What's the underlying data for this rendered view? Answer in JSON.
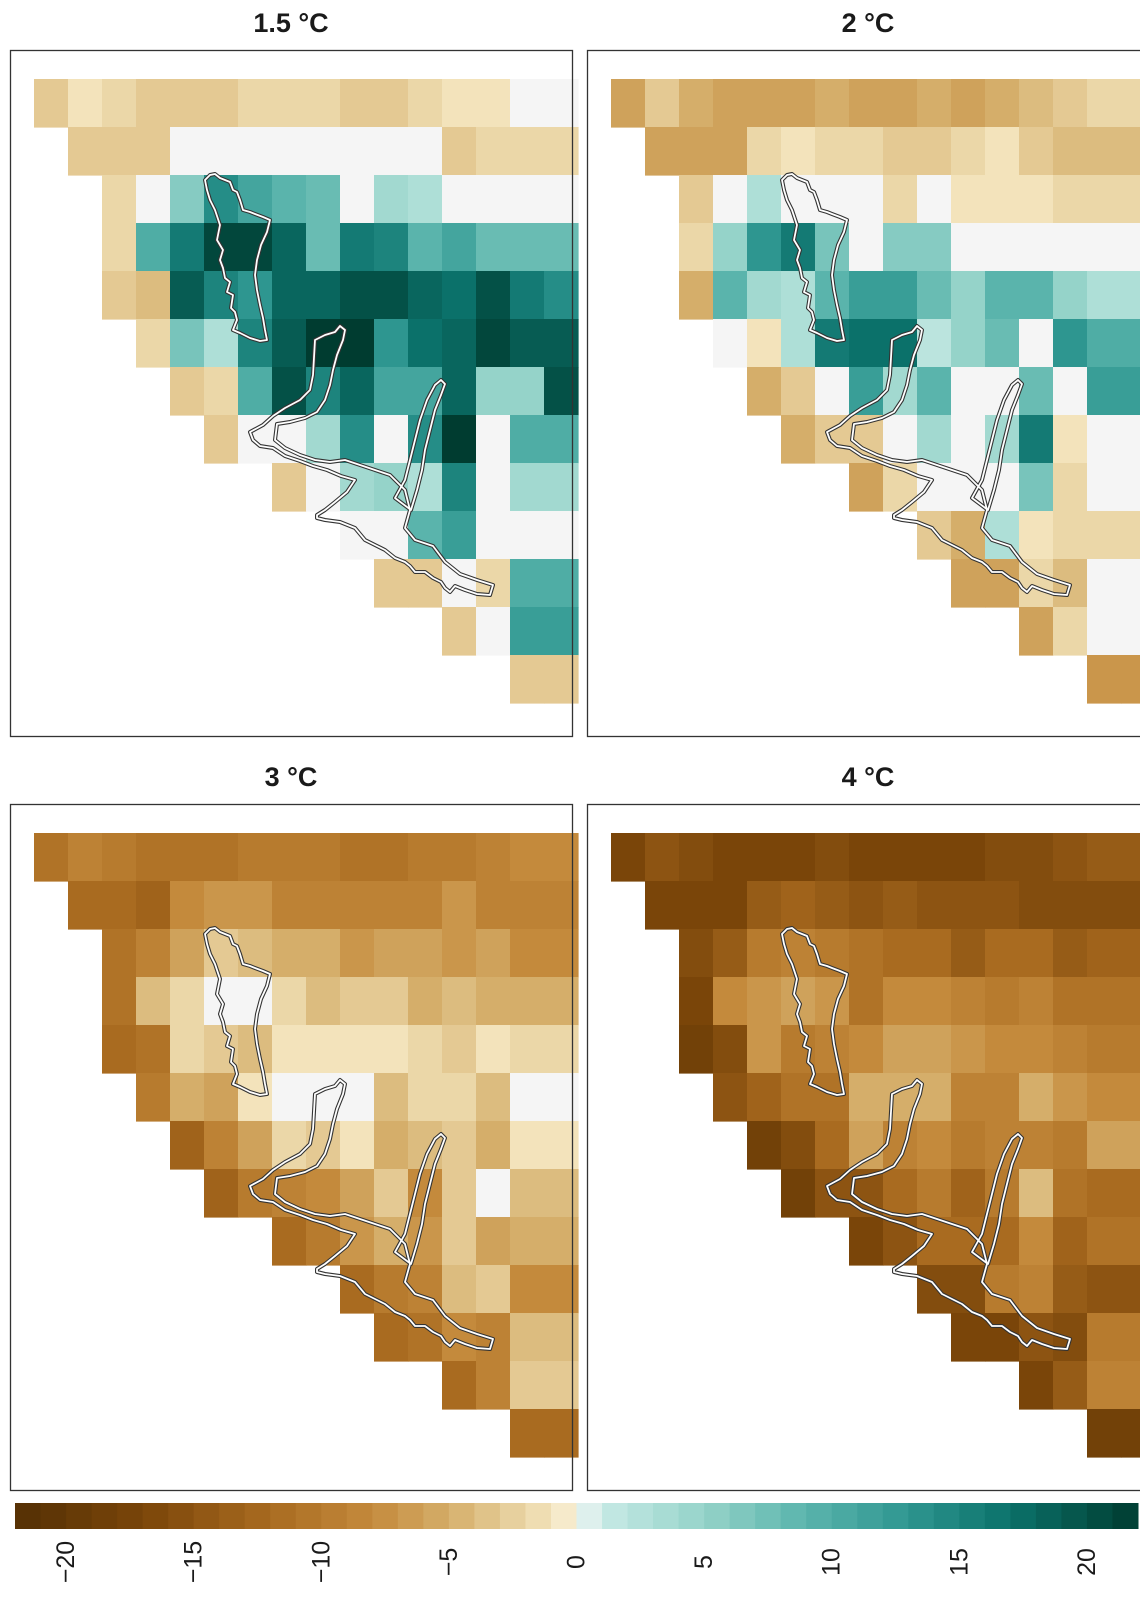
{
  "chart_data": {
    "type": "heatmap",
    "panels": [
      {
        "title": "1.5 °C",
        "grid": [
          [
            -3,
            -1,
            -2,
            -3,
            -3,
            -3,
            -2,
            -2,
            -2,
            -3,
            -3,
            -2,
            -1,
            -1,
            0,
            0
          ],
          [
            null,
            -3,
            -3,
            -3,
            0,
            0,
            0,
            0,
            0,
            0,
            0,
            0,
            -3,
            -2,
            -2,
            -2
          ],
          [
            null,
            null,
            -2,
            0,
            6,
            14,
            11,
            9,
            8,
            0,
            4,
            3,
            0,
            0,
            0,
            0
          ],
          [
            null,
            null,
            -2,
            10,
            16,
            21,
            21,
            18,
            8,
            16,
            15,
            9,
            11,
            8,
            8,
            8
          ],
          [
            null,
            null,
            -3,
            -4,
            19,
            15,
            13,
            18,
            18,
            20,
            20,
            18,
            17,
            20,
            16,
            14
          ],
          [
            null,
            null,
            null,
            -2,
            7,
            3,
            15,
            19,
            22,
            22,
            13,
            17,
            18,
            21,
            19,
            19
          ],
          [
            null,
            null,
            null,
            null,
            -3,
            -2,
            10,
            20,
            15,
            18,
            11,
            11,
            18,
            5,
            5,
            20
          ],
          [
            null,
            null,
            null,
            null,
            null,
            -3,
            0,
            0,
            4,
            14,
            0,
            14,
            22,
            0,
            10,
            10
          ],
          [
            null,
            null,
            null,
            null,
            null,
            null,
            null,
            -3,
            0,
            4,
            5,
            3,
            15,
            0,
            4,
            4
          ],
          [
            null,
            null,
            null,
            null,
            null,
            null,
            null,
            null,
            null,
            0,
            0,
            9,
            12,
            0,
            0,
            0
          ],
          [
            null,
            null,
            null,
            null,
            null,
            null,
            null,
            null,
            null,
            null,
            -3,
            -3,
            0,
            -2,
            10,
            10
          ],
          [
            null,
            null,
            null,
            null,
            null,
            null,
            null,
            null,
            null,
            null,
            null,
            null,
            -3,
            0,
            12,
            12
          ],
          [
            null,
            null,
            null,
            null,
            null,
            null,
            null,
            null,
            null,
            null,
            null,
            null,
            null,
            null,
            -3,
            -3
          ]
        ]
      },
      {
        "title": "2 °C",
        "grid": [
          [
            -6,
            -3,
            -5,
            -6,
            -6,
            -6,
            -5,
            -6,
            -6,
            -5,
            -6,
            -5,
            -4,
            -3,
            -2,
            -2
          ],
          [
            null,
            -6,
            -6,
            -6,
            -2,
            -1,
            -2,
            -2,
            -3,
            -3,
            -2,
            -1,
            -3,
            -4,
            -4,
            -4
          ],
          [
            null,
            null,
            -3,
            0,
            3,
            0,
            0,
            0,
            -2,
            0,
            -1,
            -1,
            -1,
            -2,
            -2,
            -2
          ],
          [
            null,
            null,
            -2,
            5,
            13,
            16,
            7,
            0,
            6,
            6,
            0,
            0,
            0,
            0,
            0,
            0
          ],
          [
            null,
            null,
            -5,
            9,
            4,
            3,
            9,
            12,
            12,
            8,
            5,
            9,
            9,
            5,
            3,
            3
          ],
          [
            null,
            null,
            null,
            0,
            -1,
            3,
            16,
            17,
            17,
            2,
            5,
            8,
            0,
            13,
            10,
            10
          ],
          [
            null,
            null,
            null,
            null,
            -5,
            -3,
            0,
            12,
            4,
            9,
            0,
            0,
            8,
            0,
            12,
            12
          ],
          [
            null,
            null,
            null,
            null,
            null,
            -5,
            -3,
            -3,
            0,
            4,
            0,
            4,
            16,
            -1,
            0,
            0
          ],
          [
            null,
            null,
            null,
            null,
            null,
            null,
            null,
            -6,
            -2,
            0,
            0,
            0,
            7,
            -2,
            0,
            0
          ],
          [
            null,
            null,
            null,
            null,
            null,
            null,
            null,
            null,
            null,
            -3,
            -5,
            3,
            -1,
            -2,
            -2,
            -2
          ],
          [
            null,
            null,
            null,
            null,
            null,
            null,
            null,
            null,
            null,
            null,
            -6,
            -6,
            -2,
            -4,
            0,
            0
          ],
          [
            null,
            null,
            null,
            null,
            null,
            null,
            null,
            null,
            null,
            null,
            null,
            null,
            -6,
            -2,
            0,
            0
          ],
          [
            null,
            null,
            null,
            null,
            null,
            null,
            null,
            null,
            null,
            null,
            null,
            null,
            null,
            null,
            -7,
            -7
          ]
        ]
      },
      {
        "title": "3 °C",
        "grid": [
          [
            -11,
            -9,
            -10,
            -11,
            -11,
            -11,
            -10,
            -10,
            -10,
            -11,
            -11,
            -10,
            -10,
            -9,
            -8,
            -8
          ],
          [
            null,
            -12,
            -12,
            -13,
            -8,
            -7,
            -7,
            -9,
            -9,
            -9,
            -9,
            -9,
            -7,
            -9,
            -9,
            -9
          ],
          [
            null,
            null,
            -11,
            -9,
            -6,
            -3,
            -4,
            -5,
            -5,
            -7,
            -6,
            -6,
            -7,
            -6,
            -8,
            -8
          ],
          [
            null,
            null,
            -11,
            -4,
            -2,
            0,
            0,
            -2,
            -4,
            -3,
            -3,
            -5,
            -4,
            -5,
            -5,
            -5
          ],
          [
            null,
            null,
            -12,
            -11,
            -2,
            -3,
            -4,
            -1,
            -1,
            -1,
            -1,
            -2,
            -3,
            -1,
            -2,
            -2
          ],
          [
            null,
            null,
            null,
            -10,
            -5,
            -6,
            -1,
            0,
            0,
            0,
            -4,
            -2,
            -2,
            -4,
            0,
            0
          ],
          [
            null,
            null,
            null,
            null,
            -13,
            -9,
            -6,
            -2,
            -3,
            -1,
            -5,
            -4,
            -3,
            -5,
            -1,
            -1
          ],
          [
            null,
            null,
            null,
            null,
            null,
            -13,
            -10,
            -9,
            -8,
            -6,
            -3,
            -8,
            -3,
            0,
            -4,
            -4
          ],
          [
            null,
            null,
            null,
            null,
            null,
            null,
            null,
            -12,
            -10,
            -7,
            -5,
            -7,
            -3,
            -6,
            -5,
            -5
          ],
          [
            null,
            null,
            null,
            null,
            null,
            null,
            null,
            null,
            null,
            -12,
            -10,
            -9,
            -4,
            -3,
            -8,
            -8
          ],
          [
            null,
            null,
            null,
            null,
            null,
            null,
            null,
            null,
            null,
            null,
            -12,
            -11,
            -8,
            -9,
            -4,
            -4
          ],
          [
            null,
            null,
            null,
            null,
            null,
            null,
            null,
            null,
            null,
            null,
            null,
            null,
            -12,
            -9,
            -3,
            -3
          ],
          [
            null,
            null,
            null,
            null,
            null,
            null,
            null,
            null,
            null,
            null,
            null,
            null,
            null,
            null,
            -12,
            -12
          ]
        ]
      },
      {
        "title": "4 °C",
        "grid": [
          [
            -17,
            -15,
            -16,
            -17,
            -17,
            -17,
            -16,
            -17,
            -17,
            -17,
            -17,
            -16,
            -16,
            -15,
            -14,
            -14
          ],
          [
            null,
            -17,
            -17,
            -17,
            -14,
            -13,
            -14,
            -15,
            -14,
            -15,
            -15,
            -15,
            -16,
            -16,
            -16,
            -16
          ],
          [
            null,
            null,
            -16,
            -14,
            -10,
            -9,
            -10,
            -11,
            -12,
            -12,
            -14,
            -12,
            -12,
            -14,
            -13,
            -13
          ],
          [
            null,
            null,
            -17,
            -8,
            -7,
            -6,
            -7,
            -11,
            -8,
            -8,
            -9,
            -10,
            -9,
            -11,
            -11,
            -11
          ],
          [
            null,
            null,
            -18,
            -16,
            -7,
            -10,
            -9,
            -8,
            -6,
            -6,
            -7,
            -8,
            -8,
            -9,
            -10,
            -10
          ],
          [
            null,
            null,
            null,
            -15,
            -13,
            -11,
            -11,
            -5,
            -5,
            -5,
            -9,
            -9,
            -5,
            -7,
            -8,
            -8
          ],
          [
            null,
            null,
            null,
            null,
            -18,
            -16,
            -12,
            -6,
            -9,
            -8,
            -10,
            -9,
            -9,
            -10,
            -6,
            -6
          ],
          [
            null,
            null,
            null,
            null,
            null,
            -18,
            -15,
            -15,
            -12,
            -10,
            -13,
            -10,
            -4,
            -11,
            -12,
            -12
          ],
          [
            null,
            null,
            null,
            null,
            null,
            null,
            null,
            -17,
            -15,
            -12,
            -12,
            -12,
            -8,
            -13,
            -11,
            -11
          ],
          [
            null,
            null,
            null,
            null,
            null,
            null,
            null,
            null,
            null,
            -16,
            -16,
            -10,
            -9,
            -14,
            -15,
            -15
          ],
          [
            null,
            null,
            null,
            null,
            null,
            null,
            null,
            null,
            null,
            null,
            -17,
            -17,
            -15,
            -16,
            -10,
            -10
          ],
          [
            null,
            null,
            null,
            null,
            null,
            null,
            null,
            null,
            null,
            null,
            null,
            null,
            -17,
            -14,
            -9,
            -9
          ],
          [
            null,
            null,
            null,
            null,
            null,
            null,
            null,
            null,
            null,
            null,
            null,
            null,
            null,
            null,
            -18,
            -18
          ]
        ]
      }
    ],
    "colorbar": {
      "range": [
        -22,
        22
      ],
      "ticks": [
        -20,
        -15,
        -10,
        -5,
        0,
        5,
        10,
        15,
        20
      ],
      "tick_labels": [
        "−20",
        "−15",
        "−10",
        "−5",
        "0",
        "5",
        "10",
        "15",
        "20"
      ],
      "stops": [
        {
          "v": -22,
          "c": "#543005"
        },
        {
          "v": -17,
          "c": "#7a4509"
        },
        {
          "v": -12,
          "c": "#a96b20"
        },
        {
          "v": -8,
          "c": "#c48a3c"
        },
        {
          "v": -5,
          "c": "#d5ae6a"
        },
        {
          "v": -2,
          "c": "#ebd7a8"
        },
        {
          "v": -0.6,
          "c": "#f6e8c3"
        },
        {
          "v": 0,
          "c": "#f5f5f5"
        },
        {
          "v": 1,
          "c": "#c7eae5"
        },
        {
          "v": 5,
          "c": "#95d3c9"
        },
        {
          "v": 9,
          "c": "#5ab4ac"
        },
        {
          "v": 13,
          "c": "#2e9690"
        },
        {
          "v": 17,
          "c": "#0b716a"
        },
        {
          "v": 22,
          "c": "#003c30"
        }
      ]
    },
    "outline_color": "#333333",
    "frame_color": "#333333"
  }
}
